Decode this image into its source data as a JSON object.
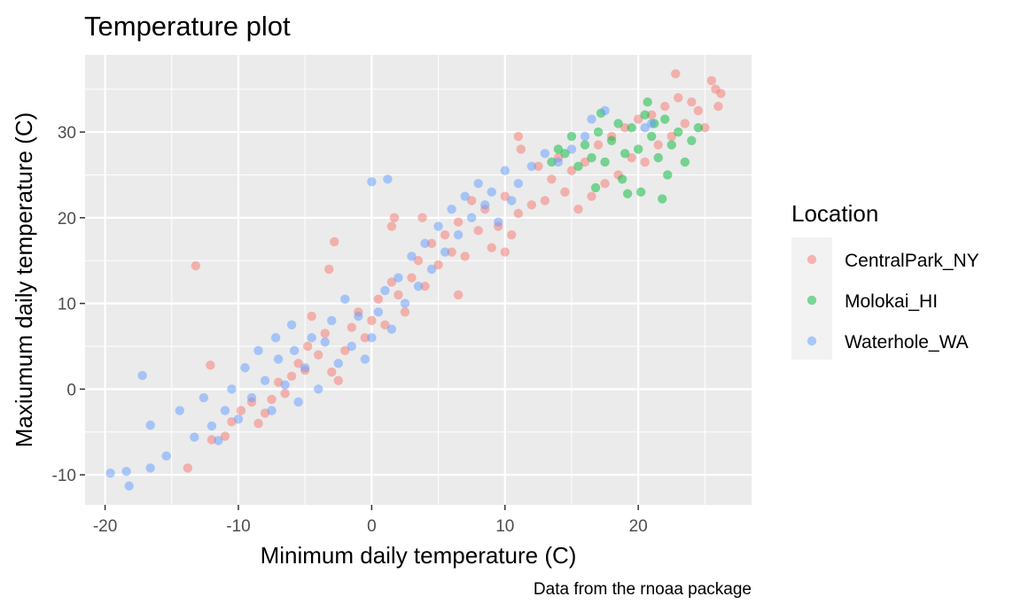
{
  "chart_data": {
    "type": "scatter",
    "title": "Temperature plot",
    "xlabel": "Minimum daily temperature (C)",
    "ylabel": "Maxiumum daily temperature (C)",
    "caption": "Data from the rnoaa package",
    "xlim": [
      -21.5,
      28.5
    ],
    "ylim": [
      -13.5,
      39
    ],
    "xticks": [
      -20,
      -10,
      0,
      10,
      20
    ],
    "yticks": [
      -10,
      0,
      10,
      20,
      30
    ],
    "grid": true,
    "legend": {
      "title": "Location",
      "position": "right"
    },
    "point_alpha": 0.5,
    "series": [
      {
        "name": "CentralPark_NY",
        "color": "#F8766D",
        "points": [
          [
            -13.2,
            14.4
          ],
          [
            -12.1,
            2.8
          ],
          [
            -13.8,
            -9.2
          ],
          [
            -12.0,
            -5.9
          ],
          [
            -11.0,
            -5.5
          ],
          [
            -10.5,
            -3.8
          ],
          [
            -9.8,
            -2.5
          ],
          [
            -9.0,
            -1.5
          ],
          [
            -8.5,
            -4.0
          ],
          [
            -8.0,
            -2.8
          ],
          [
            -7.5,
            -1.2
          ],
          [
            -7.0,
            0.8
          ],
          [
            -6.5,
            -0.5
          ],
          [
            -6.0,
            1.5
          ],
          [
            -5.5,
            3.0
          ],
          [
            -5.0,
            2.2
          ],
          [
            -4.8,
            5.0
          ],
          [
            -4.5,
            8.5
          ],
          [
            -4.0,
            4.0
          ],
          [
            -3.5,
            6.5
          ],
          [
            -3.2,
            14.0
          ],
          [
            -2.8,
            17.2
          ],
          [
            -3.0,
            2.0
          ],
          [
            -2.5,
            1.0
          ],
          [
            -2.0,
            4.5
          ],
          [
            -1.5,
            7.2
          ],
          [
            -1.0,
            9.0
          ],
          [
            -0.5,
            6.0
          ],
          [
            0.0,
            8.0
          ],
          [
            0.5,
            10.5
          ],
          [
            1.0,
            7.5
          ],
          [
            1.5,
            12.5
          ],
          [
            1.5,
            19.0
          ],
          [
            1.7,
            20.0
          ],
          [
            2.0,
            11.0
          ],
          [
            2.5,
            9.0
          ],
          [
            3.0,
            13.0
          ],
          [
            3.5,
            15.0
          ],
          [
            3.8,
            20.0
          ],
          [
            4.0,
            12.0
          ],
          [
            4.5,
            17.0
          ],
          [
            5.0,
            14.5
          ],
          [
            5.5,
            18.0
          ],
          [
            6.0,
            16.0
          ],
          [
            6.5,
            19.5
          ],
          [
            7.0,
            15.5
          ],
          [
            7.5,
            22.0
          ],
          [
            6.5,
            11.0
          ],
          [
            8.0,
            18.5
          ],
          [
            8.5,
            21.0
          ],
          [
            9.0,
            16.5
          ],
          [
            9.5,
            19.0
          ],
          [
            10.0,
            22.5
          ],
          [
            10.0,
            16.0
          ],
          [
            10.5,
            18.0
          ],
          [
            11.0,
            20.5
          ],
          [
            11.0,
            29.5
          ],
          [
            11.2,
            28.0
          ],
          [
            12.0,
            21.5
          ],
          [
            12.5,
            26.0
          ],
          [
            13.0,
            22.0
          ],
          [
            13.5,
            24.5
          ],
          [
            14.0,
            27.0
          ],
          [
            14.5,
            23.0
          ],
          [
            15.0,
            25.5
          ],
          [
            15.5,
            21.0
          ],
          [
            16.0,
            26.5
          ],
          [
            16.5,
            22.5
          ],
          [
            17.0,
            28.5
          ],
          [
            17.5,
            24.0
          ],
          [
            18.0,
            29.5
          ],
          [
            18.5,
            25.0
          ],
          [
            19.0,
            30.5
          ],
          [
            19.5,
            27.0
          ],
          [
            20.0,
            31.5
          ],
          [
            20.5,
            26.5
          ],
          [
            21.0,
            32.0
          ],
          [
            21.5,
            28.5
          ],
          [
            22.0,
            33.0
          ],
          [
            22.5,
            29.5
          ],
          [
            23.0,
            34.0
          ],
          [
            23.5,
            31.0
          ],
          [
            24.0,
            33.5
          ],
          [
            24.5,
            32.5
          ],
          [
            25.0,
            30.5
          ],
          [
            25.5,
            36.0
          ],
          [
            25.8,
            35.0
          ],
          [
            26.0,
            33.0
          ],
          [
            22.8,
            36.8
          ],
          [
            26.2,
            34.5
          ]
        ]
      },
      {
        "name": "Molokai_HI",
        "color": "#00BA38",
        "points": [
          [
            13.5,
            26.5
          ],
          [
            14.0,
            28.0
          ],
          [
            14.5,
            27.5
          ],
          [
            15.0,
            29.5
          ],
          [
            15.5,
            26.0
          ],
          [
            16.0,
            28.5
          ],
          [
            16.5,
            27.0
          ],
          [
            17.0,
            30.0
          ],
          [
            17.2,
            32.2
          ],
          [
            17.5,
            26.5
          ],
          [
            18.0,
            29.0
          ],
          [
            18.5,
            31.0
          ],
          [
            19.0,
            27.5
          ],
          [
            19.5,
            30.5
          ],
          [
            20.0,
            28.0
          ],
          [
            20.2,
            23.0
          ],
          [
            20.5,
            32.0
          ],
          [
            21.0,
            29.5
          ],
          [
            21.5,
            27.0
          ],
          [
            21.8,
            22.2
          ],
          [
            22.0,
            31.5
          ],
          [
            22.5,
            28.5
          ],
          [
            23.0,
            30.0
          ],
          [
            23.5,
            26.5
          ],
          [
            24.0,
            29.0
          ],
          [
            24.5,
            30.5
          ],
          [
            19.2,
            22.8
          ],
          [
            20.7,
            33.5
          ],
          [
            18.8,
            24.5
          ],
          [
            22.2,
            25.0
          ],
          [
            16.8,
            23.5
          ],
          [
            21.2,
            31.0
          ]
        ]
      },
      {
        "name": "Waterhole_WA",
        "color": "#619CFF",
        "points": [
          [
            -19.6,
            -9.8
          ],
          [
            -18.4,
            -9.6
          ],
          [
            -18.2,
            -11.3
          ],
          [
            -17.2,
            1.6
          ],
          [
            -16.6,
            -4.2
          ],
          [
            -16.6,
            -9.2
          ],
          [
            -15.4,
            -7.8
          ],
          [
            -14.4,
            -2.5
          ],
          [
            -13.3,
            -5.6
          ],
          [
            -12.6,
            -1.0
          ],
          [
            -12.0,
            -4.3
          ],
          [
            -11.5,
            -6.0
          ],
          [
            -11.0,
            -2.5
          ],
          [
            -10.5,
            0.0
          ],
          [
            -10.0,
            -3.5
          ],
          [
            -9.5,
            2.5
          ],
          [
            -9.0,
            -1.0
          ],
          [
            -8.5,
            4.5
          ],
          [
            -8.0,
            1.0
          ],
          [
            -7.5,
            -2.5
          ],
          [
            -7.2,
            6.0
          ],
          [
            -7.0,
            3.5
          ],
          [
            -6.5,
            0.5
          ],
          [
            -6.0,
            7.5
          ],
          [
            -5.8,
            4.5
          ],
          [
            -5.5,
            -1.5
          ],
          [
            -5.0,
            2.5
          ],
          [
            -4.5,
            6.0
          ],
          [
            -4.0,
            0.0
          ],
          [
            -3.5,
            5.5
          ],
          [
            -3.0,
            8.0
          ],
          [
            -2.5,
            3.0
          ],
          [
            -2.0,
            10.5
          ],
          [
            -1.5,
            5.0
          ],
          [
            -1.0,
            8.5
          ],
          [
            -0.5,
            3.5
          ],
          [
            0.0,
            6.0
          ],
          [
            0.0,
            24.2
          ],
          [
            1.2,
            24.5
          ],
          [
            0.5,
            9.0
          ],
          [
            1.0,
            11.5
          ],
          [
            1.5,
            7.0
          ],
          [
            2.0,
            13.0
          ],
          [
            2.5,
            10.0
          ],
          [
            3.0,
            15.5
          ],
          [
            3.5,
            12.0
          ],
          [
            4.0,
            17.0
          ],
          [
            4.5,
            14.0
          ],
          [
            5.0,
            19.0
          ],
          [
            5.5,
            16.0
          ],
          [
            6.0,
            21.0
          ],
          [
            6.5,
            18.0
          ],
          [
            7.0,
            22.5
          ],
          [
            7.5,
            20.0
          ],
          [
            8.0,
            24.0
          ],
          [
            8.5,
            21.5
          ],
          [
            9.0,
            23.0
          ],
          [
            9.5,
            19.5
          ],
          [
            10.0,
            25.5
          ],
          [
            10.5,
            22.0
          ],
          [
            11.0,
            24.0
          ],
          [
            12.0,
            26.0
          ],
          [
            13.0,
            27.5
          ],
          [
            14.0,
            26.5
          ],
          [
            15.0,
            28.0
          ],
          [
            16.0,
            29.5
          ],
          [
            16.5,
            31.5
          ],
          [
            17.5,
            32.5
          ],
          [
            20.5,
            30.5
          ],
          [
            21.0,
            31.0
          ]
        ]
      }
    ]
  }
}
